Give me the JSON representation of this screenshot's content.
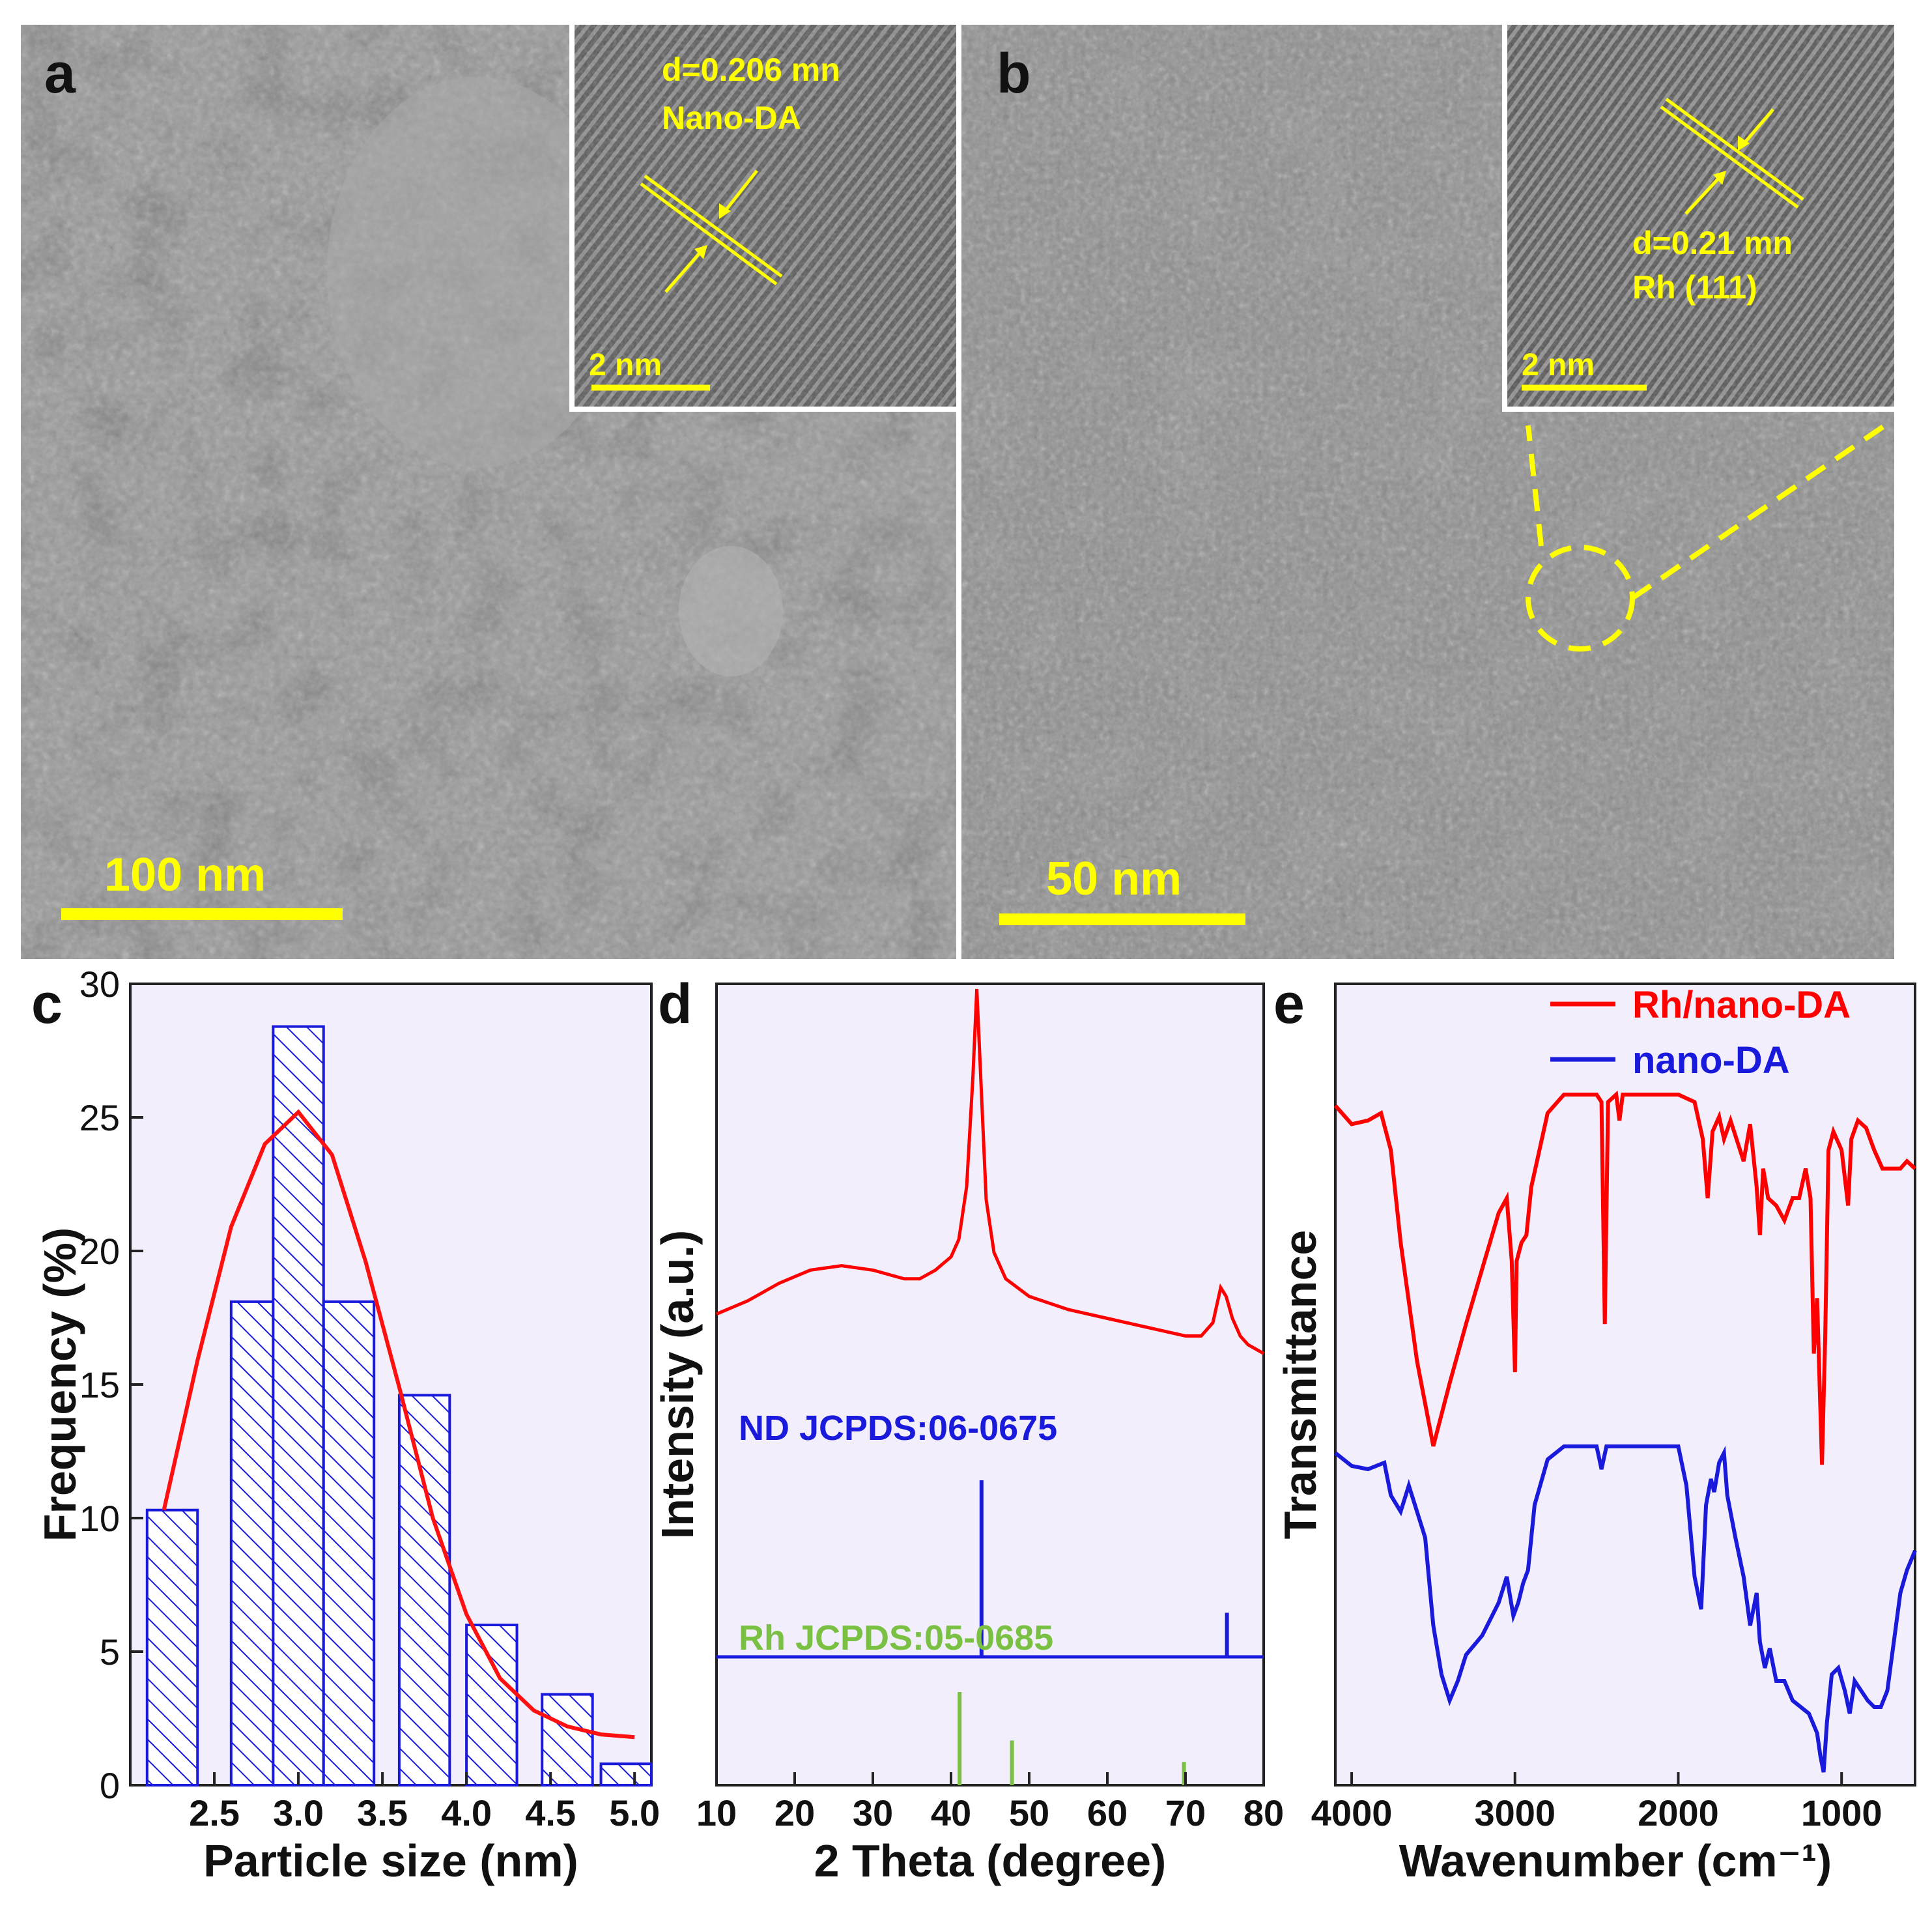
{
  "panels": {
    "a": {
      "letter": "a",
      "scale_bar": "100 nm",
      "inset": {
        "d_spacing": "d=0.206 mn",
        "phase": "Nano-DA",
        "scale_bar": "2 nm"
      }
    },
    "b": {
      "letter": "b",
      "scale_bar": "50 nm",
      "inset": {
        "d_spacing": "d=0.21 mn",
        "phase": "Rh (111)",
        "scale_bar": "2 nm"
      }
    },
    "c": {
      "letter": "c"
    },
    "d": {
      "letter": "d"
    },
    "e": {
      "letter": "e"
    }
  },
  "colors": {
    "annotation_yellow": "#ffff00",
    "rh_series": "#ff0000",
    "nano_series": "#0000ff",
    "rh_reference": "#7ac143",
    "plot_background": "#f3eefb"
  },
  "chart_data": [
    {
      "id": "c",
      "type": "bar",
      "xlabel": "Particle size (nm)",
      "ylabel": "Frequency (%)",
      "xlim": [
        2.0,
        5.1
      ],
      "ylim": [
        0,
        30
      ],
      "xticks": [
        "2.5",
        "3.0",
        "3.5",
        "4.0",
        "4.5",
        "5.0"
      ],
      "yticks": [
        "0",
        "5",
        "10",
        "15",
        "20",
        "25",
        "30"
      ],
      "bar_width": 0.3,
      "bars": [
        {
          "center": 2.25,
          "value": 10.3
        },
        {
          "center": 2.75,
          "value": 18.1
        },
        {
          "center": 3.0,
          "value": 28.4
        },
        {
          "center": 3.3,
          "value": 18.1
        },
        {
          "center": 3.75,
          "value": 14.6
        },
        {
          "center": 4.15,
          "value": 6.0
        },
        {
          "center": 4.6,
          "value": 3.4
        },
        {
          "center": 4.95,
          "value": 0.8
        }
      ],
      "fit": {
        "type": "gaussian",
        "points": [
          [
            2.2,
            10.3
          ],
          [
            2.4,
            15.9
          ],
          [
            2.6,
            20.9
          ],
          [
            2.8,
            24.0
          ],
          [
            3.0,
            25.2
          ],
          [
            3.2,
            23.6
          ],
          [
            3.4,
            19.6
          ],
          [
            3.6,
            14.9
          ],
          [
            3.8,
            10.0
          ],
          [
            4.0,
            6.4
          ],
          [
            4.2,
            4.0
          ],
          [
            4.4,
            2.8
          ],
          [
            4.6,
            2.2
          ],
          [
            4.8,
            1.9
          ],
          [
            5.0,
            1.8
          ]
        ]
      },
      "grid": false
    },
    {
      "id": "d",
      "type": "line",
      "xlabel": "2 Theta (degree)",
      "ylabel": "Intensity (a.u.)",
      "xlim": [
        10,
        80
      ],
      "xticks": [
        "10",
        "20",
        "30",
        "40",
        "50",
        "60",
        "70",
        "80"
      ],
      "series": [
        {
          "points": [
            [
              10,
              0.26
            ],
            [
              14,
              0.29
            ],
            [
              18,
              0.33
            ],
            [
              22,
              0.36
            ],
            [
              26,
              0.37
            ],
            [
              30,
              0.36
            ],
            [
              34,
              0.34
            ],
            [
              36,
              0.34
            ],
            [
              38,
              0.36
            ],
            [
              40,
              0.39
            ],
            [
              41,
              0.43
            ],
            [
              42,
              0.55
            ],
            [
              42.8,
              0.8
            ],
            [
              43.3,
              1.0
            ],
            [
              43.8,
              0.8
            ],
            [
              44.5,
              0.52
            ],
            [
              45.5,
              0.4
            ],
            [
              47,
              0.34
            ],
            [
              50,
              0.3
            ],
            [
              55,
              0.27
            ],
            [
              60,
              0.25
            ],
            [
              65,
              0.23
            ],
            [
              70,
              0.21
            ],
            [
              72,
              0.21
            ],
            [
              73.5,
              0.24
            ],
            [
              74.5,
              0.32
            ],
            [
              75.2,
              0.3
            ],
            [
              76,
              0.25
            ],
            [
              77,
              0.21
            ],
            [
              78,
              0.19
            ],
            [
              80,
              0.17
            ]
          ]
        }
      ],
      "references": [
        {
          "name": "ND JCPDS:06-0675",
          "lines": [
            [
              43.9,
              1.0
            ],
            [
              75.3,
              0.25
            ]
          ]
        },
        {
          "name": "Rh JCPDS:05-0685",
          "lines": [
            [
              41.1,
              1.0
            ],
            [
              47.8,
              0.48
            ],
            [
              69.8,
              0.25
            ]
          ]
        }
      ],
      "grid": false
    },
    {
      "id": "e",
      "type": "line",
      "xlabel": "Wavenumber (cm⁻¹)",
      "ylabel": "Transmittance",
      "xlim": [
        4100,
        550
      ],
      "x_reversed": true,
      "xticks": [
        "4000",
        "3000",
        "2000",
        "1000"
      ],
      "legend": {
        "position": "top-right"
      },
      "series": [
        {
          "name": "Rh/nano-DA",
          "points": [
            [
              4100,
              0.97
            ],
            [
              4000,
              0.92
            ],
            [
              3900,
              0.93
            ],
            [
              3820,
              0.95
            ],
            [
              3760,
              0.85
            ],
            [
              3700,
              0.6
            ],
            [
              3600,
              0.28
            ],
            [
              3500,
              0.05
            ],
            [
              3400,
              0.22
            ],
            [
              3300,
              0.38
            ],
            [
              3200,
              0.53
            ],
            [
              3100,
              0.68
            ],
            [
              3050,
              0.72
            ],
            [
              3020,
              0.55
            ],
            [
              3000,
              0.25
            ],
            [
              2990,
              0.55
            ],
            [
              2960,
              0.6
            ],
            [
              2930,
              0.62
            ],
            [
              2900,
              0.75
            ],
            [
              2800,
              0.95
            ],
            [
              2700,
              1.0
            ],
            [
              2500,
              1.0
            ],
            [
              2470,
              0.98
            ],
            [
              2450,
              0.38
            ],
            [
              2430,
              0.98
            ],
            [
              2380,
              1.0
            ],
            [
              2360,
              0.93
            ],
            [
              2340,
              1.0
            ],
            [
              2000,
              1.0
            ],
            [
              1900,
              0.98
            ],
            [
              1850,
              0.88
            ],
            [
              1820,
              0.72
            ],
            [
              1790,
              0.9
            ],
            [
              1750,
              0.94
            ],
            [
              1720,
              0.88
            ],
            [
              1680,
              0.93
            ],
            [
              1600,
              0.82
            ],
            [
              1560,
              0.92
            ],
            [
              1520,
              0.75
            ],
            [
              1500,
              0.62
            ],
            [
              1480,
              0.8
            ],
            [
              1450,
              0.72
            ],
            [
              1400,
              0.7
            ],
            [
              1350,
              0.66
            ],
            [
              1300,
              0.72
            ],
            [
              1260,
              0.72
            ],
            [
              1220,
              0.8
            ],
            [
              1190,
              0.72
            ],
            [
              1170,
              0.3
            ],
            [
              1150,
              0.45
            ],
            [
              1120,
              0.0
            ],
            [
              1100,
              0.35
            ],
            [
              1080,
              0.85
            ],
            [
              1050,
              0.9
            ],
            [
              1000,
              0.85
            ],
            [
              960,
              0.7
            ],
            [
              940,
              0.88
            ],
            [
              900,
              0.93
            ],
            [
              850,
              0.91
            ],
            [
              800,
              0.85
            ],
            [
              750,
              0.8
            ],
            [
              700,
              0.8
            ],
            [
              640,
              0.8
            ],
            [
              600,
              0.82
            ],
            [
              550,
              0.8
            ]
          ]
        },
        {
          "name": "nano-DA",
          "points": [
            [
              4100,
              0.98
            ],
            [
              4000,
              0.94
            ],
            [
              3900,
              0.93
            ],
            [
              3800,
              0.95
            ],
            [
              3760,
              0.85
            ],
            [
              3700,
              0.8
            ],
            [
              3650,
              0.88
            ],
            [
              3600,
              0.8
            ],
            [
              3550,
              0.72
            ],
            [
              3500,
              0.45
            ],
            [
              3450,
              0.3
            ],
            [
              3400,
              0.22
            ],
            [
              3350,
              0.28
            ],
            [
              3300,
              0.36
            ],
            [
              3200,
              0.42
            ],
            [
              3100,
              0.52
            ],
            [
              3050,
              0.6
            ],
            [
              3010,
              0.48
            ],
            [
              2980,
              0.52
            ],
            [
              2950,
              0.58
            ],
            [
              2920,
              0.62
            ],
            [
              2880,
              0.82
            ],
            [
              2800,
              0.96
            ],
            [
              2700,
              1.0
            ],
            [
              2500,
              1.0
            ],
            [
              2470,
              0.93
            ],
            [
              2440,
              1.0
            ],
            [
              2000,
              1.0
            ],
            [
              1950,
              0.88
            ],
            [
              1900,
              0.6
            ],
            [
              1860,
              0.5
            ],
            [
              1830,
              0.82
            ],
            [
              1800,
              0.9
            ],
            [
              1780,
              0.86
            ],
            [
              1750,
              0.95
            ],
            [
              1720,
              0.98
            ],
            [
              1700,
              0.85
            ],
            [
              1650,
              0.72
            ],
            [
              1600,
              0.6
            ],
            [
              1560,
              0.45
            ],
            [
              1520,
              0.55
            ],
            [
              1500,
              0.4
            ],
            [
              1470,
              0.32
            ],
            [
              1440,
              0.38
            ],
            [
              1400,
              0.28
            ],
            [
              1350,
              0.28
            ],
            [
              1300,
              0.22
            ],
            [
              1250,
              0.2
            ],
            [
              1200,
              0.18
            ],
            [
              1150,
              0.12
            ],
            [
              1130,
              0.05
            ],
            [
              1110,
              0.0
            ],
            [
              1090,
              0.15
            ],
            [
              1060,
              0.3
            ],
            [
              1020,
              0.32
            ],
            [
              980,
              0.25
            ],
            [
              950,
              0.18
            ],
            [
              920,
              0.28
            ],
            [
              880,
              0.25
            ],
            [
              840,
              0.22
            ],
            [
              800,
              0.2
            ],
            [
              760,
              0.2
            ],
            [
              720,
              0.25
            ],
            [
              680,
              0.4
            ],
            [
              640,
              0.55
            ],
            [
              600,
              0.62
            ],
            [
              550,
              0.68
            ]
          ]
        }
      ],
      "grid": false
    }
  ]
}
